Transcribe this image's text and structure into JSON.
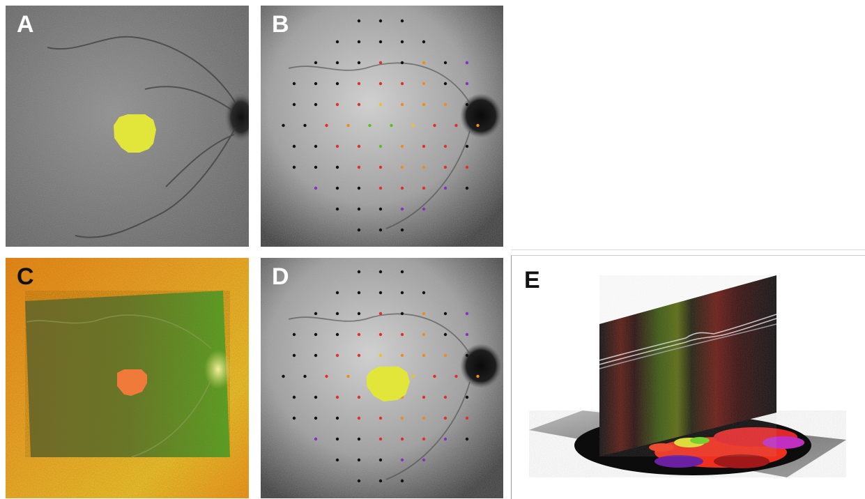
{
  "panels": [
    {
      "id": "A",
      "label": "A"
    },
    {
      "id": "B",
      "label": "B"
    },
    {
      "id": "C",
      "label": "C"
    },
    {
      "id": "D",
      "label": "D"
    },
    {
      "id": "E",
      "label": "E"
    }
  ],
  "colors": {
    "lesion_yellow": "#e2e63a",
    "lesion_orange": "#f07a3a",
    "point_black": "#111111",
    "point_red": "#e0302a",
    "point_orange": "#f08a1a",
    "point_yellow": "#f0c020",
    "point_green": "#58c020",
    "point_purple": "#8a30c0"
  }
}
